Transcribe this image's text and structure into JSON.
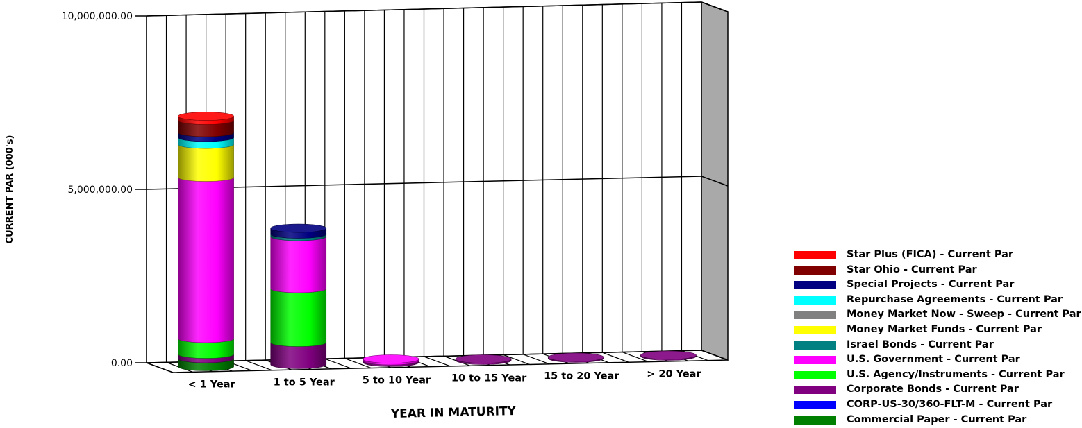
{
  "chart_data": {
    "type": "bar",
    "stacked": true,
    "xlabel": "YEAR IN MATURITY",
    "ylabel": "CURRENT PAR (000's)",
    "ylim": [
      0,
      10000000
    ],
    "yticks": [
      "0.00",
      "5,000,000.00",
      "10,000,000.00"
    ],
    "categories": [
      "< 1 Year",
      "1 to 5 Year",
      "5 to 10 Year",
      "10 to 15 Year",
      "15 to 20 Year",
      "> 20 Year"
    ],
    "grid": true,
    "legend_position": "bottom-right",
    "series": [
      {
        "name": "Commercial Paper - Current Par",
        "color": "#008000",
        "values": [
          230000,
          0,
          0,
          0,
          0,
          0
        ]
      },
      {
        "name": "CORP-US-30/360-FLT-M - Current Par",
        "color": "#0000FF",
        "values": [
          0,
          0,
          0,
          0,
          0,
          0
        ]
      },
      {
        "name": "Corporate Bonds - Current Par",
        "color": "#800080",
        "values": [
          130000,
          640000,
          50000,
          40000,
          30000,
          30000
        ]
      },
      {
        "name": "U.S. Agency/Instruments - Current Par",
        "color": "#00FF00",
        "values": [
          450000,
          1550000,
          0,
          0,
          0,
          0
        ]
      },
      {
        "name": "U.S. Government - Current Par",
        "color": "#FF00FF",
        "values": [
          4650000,
          1500000,
          50000,
          0,
          0,
          0
        ]
      },
      {
        "name": "Israel Bonds - Current Par",
        "color": "#008080",
        "values": [
          0,
          70000,
          0,
          0,
          0,
          0
        ]
      },
      {
        "name": "Money Market Funds - Current Par",
        "color": "#FFFF00",
        "values": [
          950000,
          0,
          0,
          0,
          0,
          0
        ]
      },
      {
        "name": "Money Market Now - Sweep - Current Par",
        "color": "#808080",
        "values": [
          0,
          0,
          0,
          0,
          0,
          0
        ]
      },
      {
        "name": "Repurchase Agreements - Current Par",
        "color": "#00FFFF",
        "values": [
          200000,
          0,
          0,
          0,
          0,
          0
        ]
      },
      {
        "name": "Special Projects - Current Par",
        "color": "#000080",
        "values": [
          140000,
          170000,
          0,
          0,
          0,
          0
        ]
      },
      {
        "name": "Star Ohio - Current Par",
        "color": "#800000",
        "values": [
          350000,
          0,
          0,
          0,
          0,
          0
        ]
      },
      {
        "name": "Star Plus (FICA) - Current Par",
        "color": "#FF0000",
        "values": [
          120000,
          0,
          0,
          0,
          0,
          0
        ]
      }
    ]
  },
  "legend_order": [
    11,
    10,
    9,
    8,
    7,
    6,
    5,
    4,
    3,
    2,
    1,
    0
  ]
}
